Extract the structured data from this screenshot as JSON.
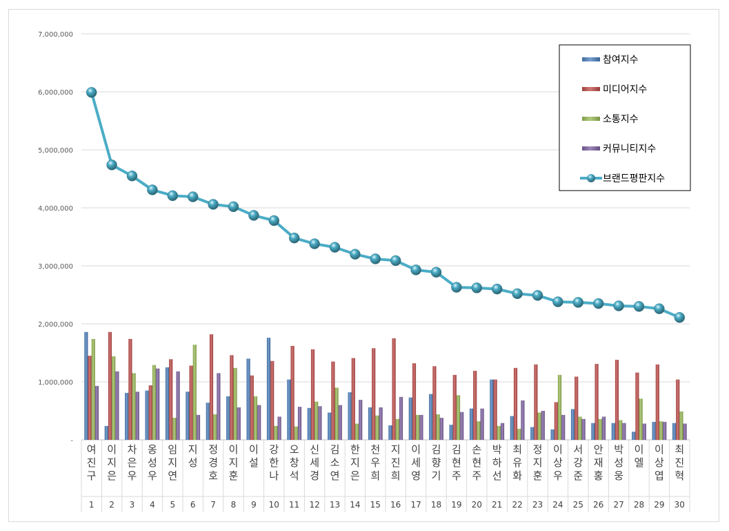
{
  "colors": {
    "participation": "#4a7ebb",
    "media": "#be4b48",
    "communication": "#98b954",
    "community": "#7d60a0",
    "brand": "#4bacc6"
  },
  "chart_data": {
    "type": "bar",
    "categories": [
      "여진구",
      "이지은",
      "차은우",
      "옹성우",
      "임지연",
      "지성",
      "정경호",
      "이지훈",
      "이설",
      "강한나",
      "오창석",
      "신세경",
      "김소연",
      "한지은",
      "천우희",
      "지진희",
      "이세영",
      "김향기",
      "김현주",
      "손현주",
      "박하선",
      "최유화",
      "정지훈",
      "이상우",
      "서강준",
      "안재홍",
      "박성웅",
      "이엘",
      "이상엽",
      "최진혁"
    ],
    "ranks": [
      "1",
      "2",
      "3",
      "4",
      "5",
      "6",
      "7",
      "8",
      "9",
      "10",
      "11",
      "12",
      "13",
      "14",
      "15",
      "16",
      "17",
      "18",
      "19",
      "20",
      "21",
      "22",
      "23",
      "24",
      "25",
      "26",
      "27",
      "28",
      "29",
      "30"
    ],
    "ylim": [
      0,
      7000000
    ],
    "yticks": [
      {
        "value": 0,
        "label": "-"
      },
      {
        "value": 1000000,
        "label": "1,000,000"
      },
      {
        "value": 2000000,
        "label": "2,000,000"
      },
      {
        "value": 3000000,
        "label": "3,000,000"
      },
      {
        "value": 4000000,
        "label": "4,000,000"
      },
      {
        "value": 5000000,
        "label": "5,000,000"
      },
      {
        "value": 6000000,
        "label": "6,000,000"
      },
      {
        "value": 7000000,
        "label": "7,000,000"
      }
    ],
    "grid": true,
    "legend_position": "top-right",
    "series": [
      {
        "name": "참여지수",
        "kind": "bar",
        "color_key": "participation",
        "values": [
          1860000,
          240000,
          810000,
          850000,
          1250000,
          830000,
          640000,
          750000,
          1400000,
          1760000,
          1040000,
          550000,
          470000,
          820000,
          560000,
          250000,
          730000,
          790000,
          260000,
          540000,
          1040000,
          410000,
          220000,
          180000,
          530000,
          290000,
          290000,
          140000,
          310000,
          290000
        ]
      },
      {
        "name": "미디어지수",
        "kind": "bar",
        "color_key": "media",
        "values": [
          1450000,
          1860000,
          1740000,
          940000,
          1390000,
          1280000,
          1820000,
          1460000,
          1110000,
          1360000,
          1620000,
          1560000,
          1350000,
          1410000,
          1580000,
          1750000,
          1320000,
          1270000,
          1120000,
          1190000,
          1040000,
          1240000,
          1300000,
          650000,
          1090000,
          1310000,
          1380000,
          1160000,
          1300000,
          1040000
        ]
      },
      {
        "name": "소통지수",
        "kind": "bar",
        "color_key": "communication",
        "values": [
          1740000,
          1440000,
          1150000,
          1290000,
          380000,
          1640000,
          440000,
          1240000,
          750000,
          240000,
          230000,
          660000,
          900000,
          280000,
          420000,
          360000,
          430000,
          440000,
          770000,
          320000,
          240000,
          190000,
          470000,
          1120000,
          400000,
          360000,
          340000,
          710000,
          320000,
          490000
        ]
      },
      {
        "name": "커뮤니티지수",
        "kind": "bar",
        "color_key": "community",
        "values": [
          930000,
          1180000,
          830000,
          1230000,
          1180000,
          430000,
          1150000,
          560000,
          600000,
          400000,
          570000,
          580000,
          600000,
          690000,
          560000,
          740000,
          430000,
          380000,
          480000,
          540000,
          290000,
          680000,
          500000,
          430000,
          360000,
          400000,
          290000,
          280000,
          310000,
          280000
        ]
      },
      {
        "name": "브랜드평판지수",
        "kind": "line",
        "color_key": "brand",
        "values": [
          5990000,
          4740000,
          4550000,
          4310000,
          4210000,
          4190000,
          4060000,
          4020000,
          3870000,
          3780000,
          3480000,
          3380000,
          3320000,
          3200000,
          3120000,
          3090000,
          2930000,
          2890000,
          2630000,
          2620000,
          2600000,
          2520000,
          2490000,
          2380000,
          2370000,
          2350000,
          2310000,
          2300000,
          2260000,
          2110000
        ]
      }
    ]
  }
}
